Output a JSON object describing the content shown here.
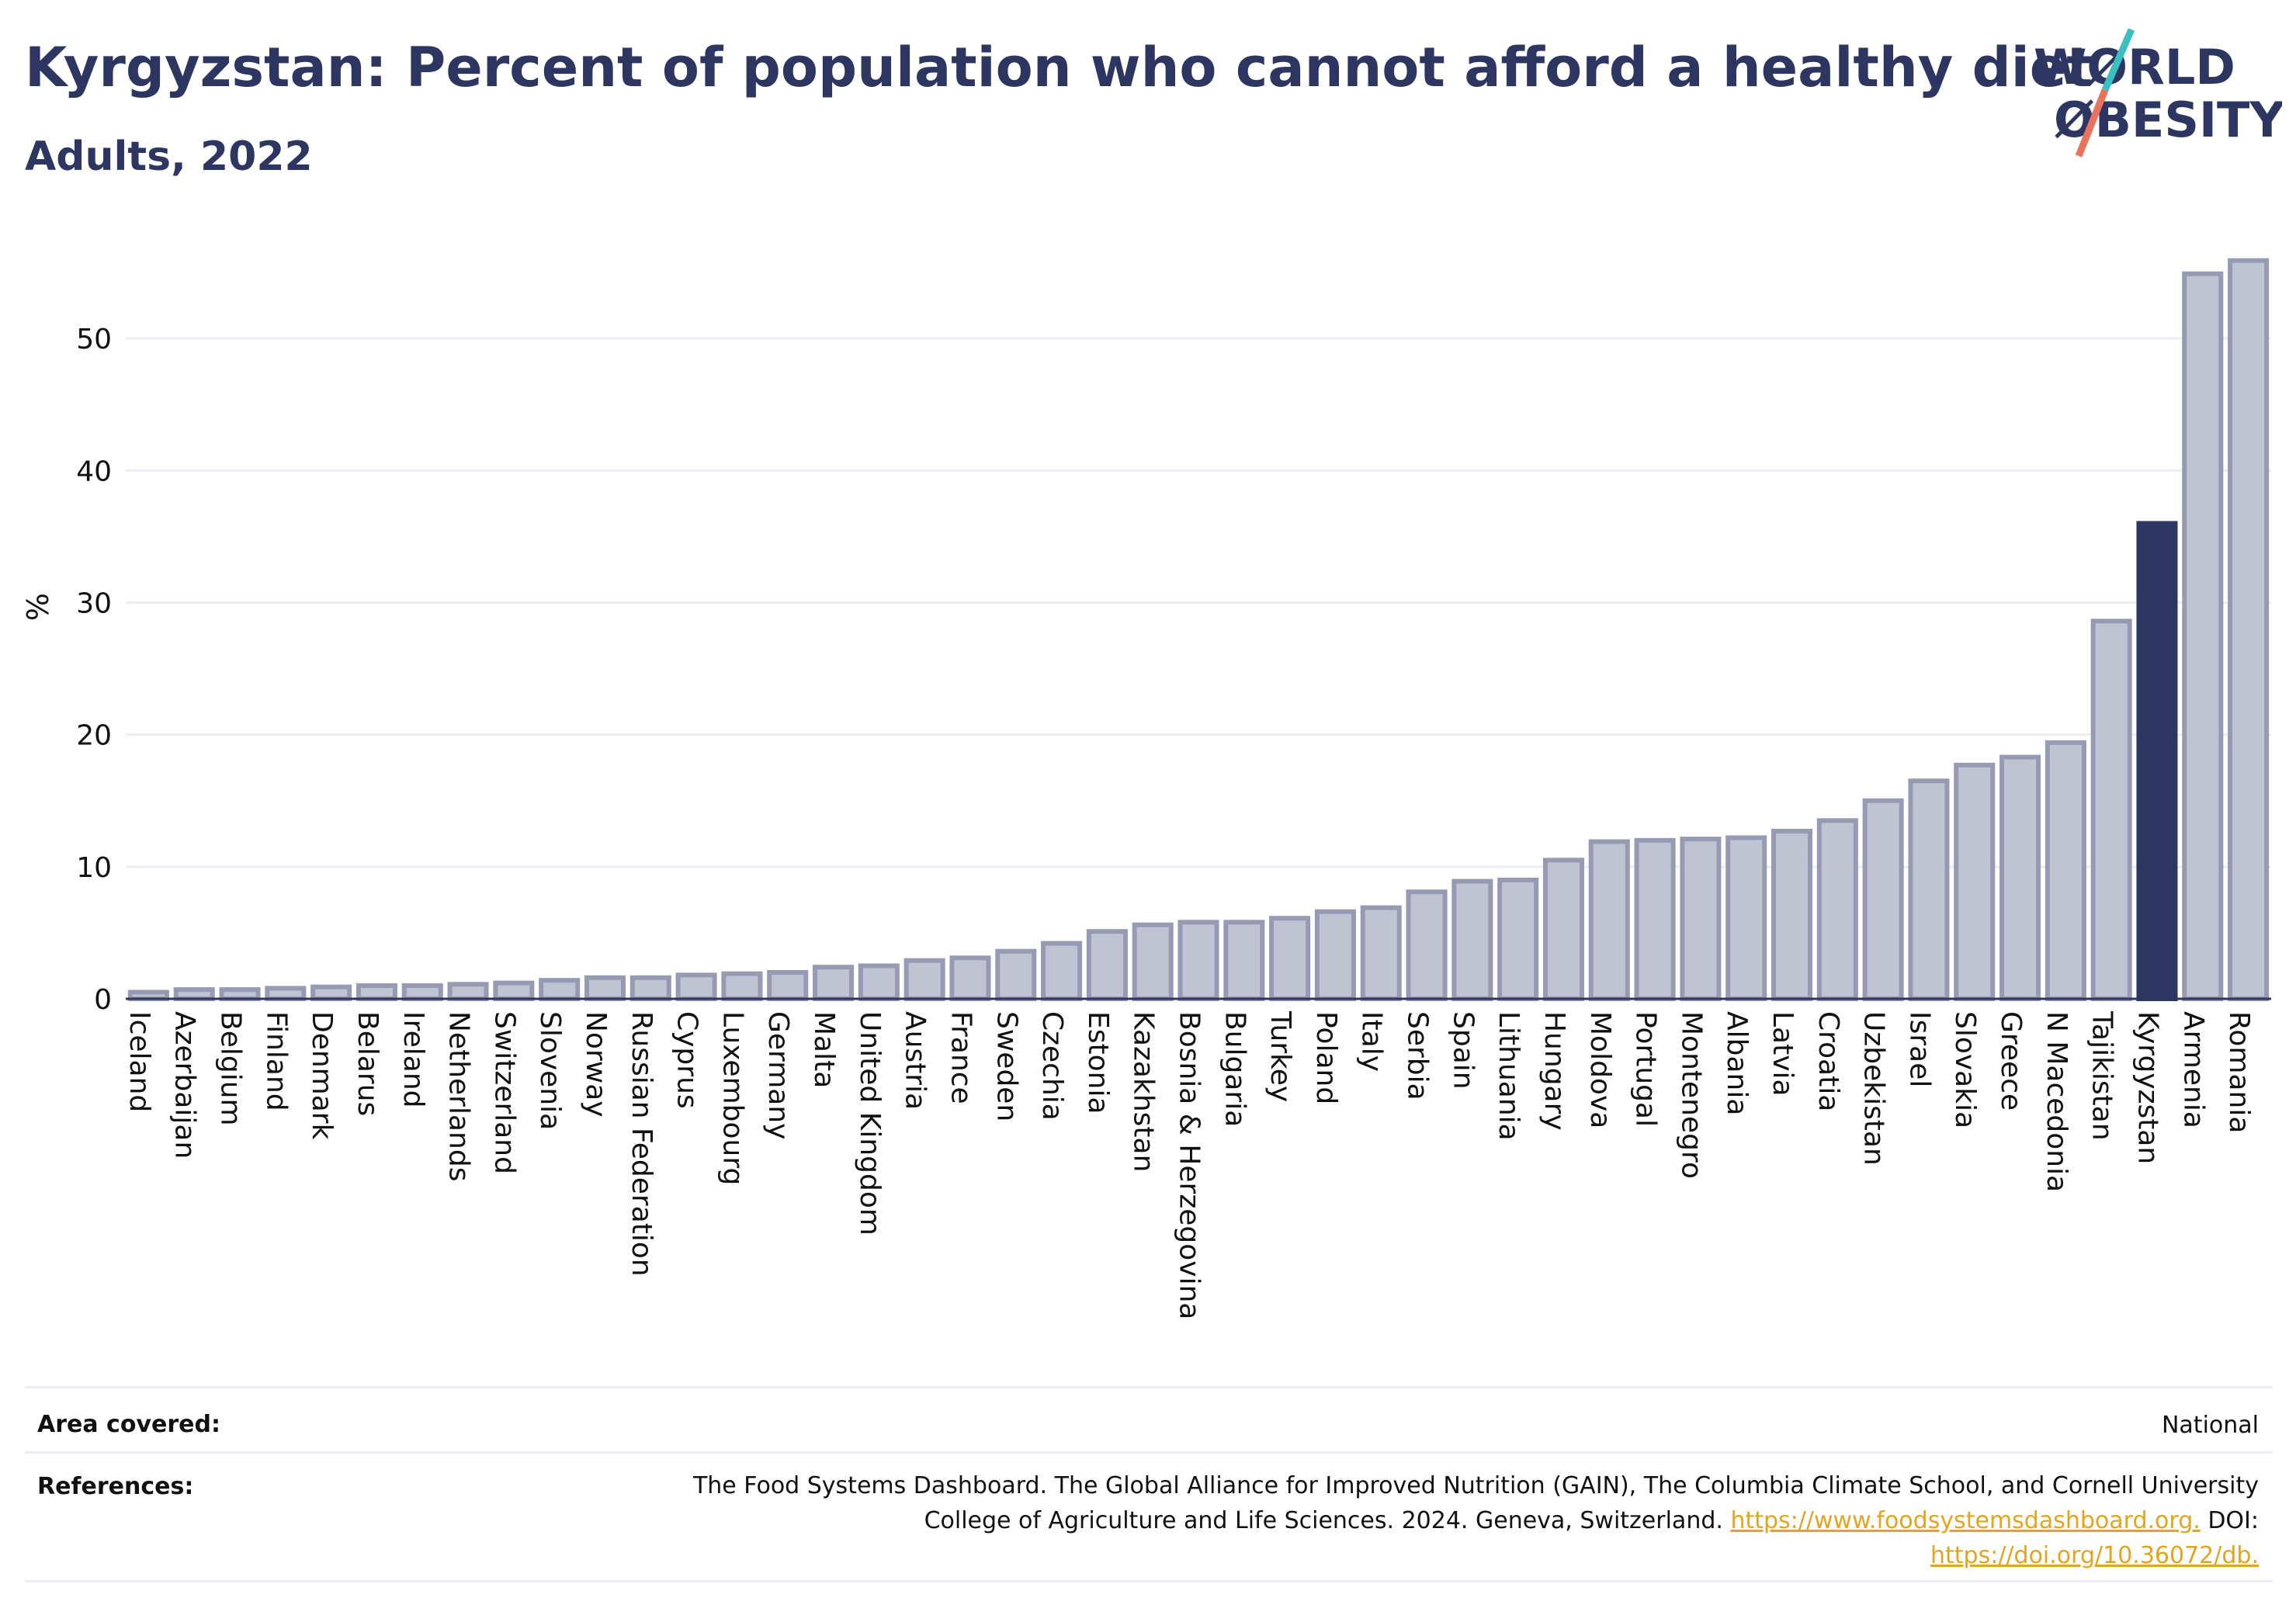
{
  "header": {
    "title": "Kyrgyzstan: Percent of population who cannot afford a healthy diet",
    "subtitle": "Adults, 2022"
  },
  "logo": {
    "line1": "WØRLD",
    "line2": "ØBESITY",
    "colors": {
      "text": "#2d3660",
      "slash_top": "#3bbfbf",
      "slash_bottom": "#e8735e"
    }
  },
  "chart_data": {
    "type": "bar",
    "title": "Kyrgyzstan: Percent of population who cannot afford a healthy diet",
    "subtitle": "Adults, 2022",
    "xlabel": "",
    "ylabel": "%",
    "ylim": [
      0,
      58
    ],
    "yticks": [
      0,
      10,
      20,
      30,
      40,
      50
    ],
    "grid": true,
    "legend": "none",
    "highlight": "Kyrgyzstan",
    "colors": {
      "bar": "#c0c4d2",
      "bar_edge": "#969bb3",
      "highlight": "#2d3660",
      "grid": "#eceef4"
    },
    "categories": [
      "Iceland",
      "Azerbaijan",
      "Belgium",
      "Finland",
      "Denmark",
      "Belarus",
      "Ireland",
      "Netherlands",
      "Switzerland",
      "Slovenia",
      "Norway",
      "Russian Federation",
      "Cyprus",
      "Luxembourg",
      "Germany",
      "Malta",
      "United Kingdom",
      "Austria",
      "France",
      "Sweden",
      "Czechia",
      "Estonia",
      "Kazakhstan",
      "Bosnia & Herzegovina",
      "Bulgaria",
      "Turkey",
      "Poland",
      "Italy",
      "Serbia",
      "Spain",
      "Lithuania",
      "Hungary",
      "Moldova",
      "Portugal",
      "Montenegro",
      "Albania",
      "Latvia",
      "Croatia",
      "Uzbekistan",
      "Israel",
      "Slovakia",
      "Greece",
      "N Macedonia",
      "Tajikistan",
      "Kyrgyzstan",
      "Armenia",
      "Romania"
    ],
    "values": [
      0.5,
      0.7,
      0.7,
      0.8,
      0.9,
      1.0,
      1.0,
      1.1,
      1.2,
      1.4,
      1.6,
      1.6,
      1.8,
      1.9,
      2.0,
      2.4,
      2.5,
      2.9,
      3.1,
      3.6,
      4.2,
      5.1,
      5.6,
      5.8,
      5.8,
      6.1,
      6.6,
      6.9,
      8.1,
      8.9,
      9.0,
      10.5,
      11.9,
      12.0,
      12.1,
      12.2,
      12.7,
      13.5,
      15.0,
      16.5,
      17.7,
      18.3,
      19.4,
      28.6,
      36.0,
      54.9,
      55.9
    ]
  },
  "footer": {
    "area_label": "Area covered:",
    "area_value": "National",
    "references_label": "References:",
    "ref_line1": "The Food Systems Dashboard. The Global Alliance for Improved Nutrition (GAIN), The Columbia Climate School, and Cornell University",
    "ref_line2": "College of Agriculture and Life Sciences. 2024. Geneva, Switzerland.",
    "ref_link1": "https://www.foodsystemsdashboard.org.",
    "ref_doi_label": "DOI:",
    "ref_link2": "https://doi.org/10.36072/db."
  }
}
